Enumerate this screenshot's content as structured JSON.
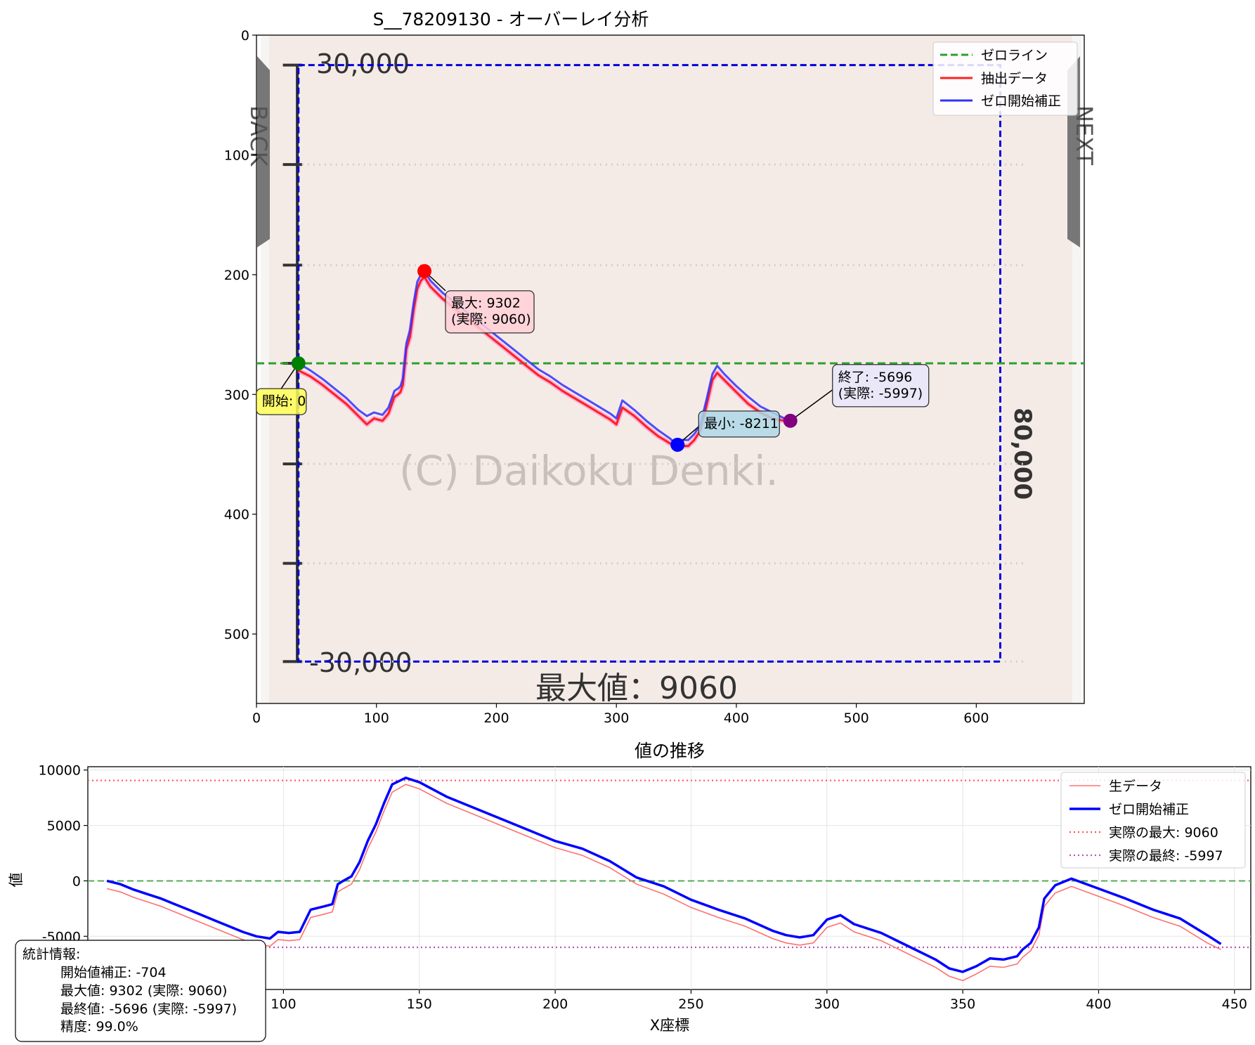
{
  "colors": {
    "zero_line": "#2ca02c",
    "raw": "#ff2020",
    "corrected": "#0000ff",
    "actual_max": "#ff5555",
    "actual_final": "#bb55bb",
    "bg_image": "#f4ebe7",
    "bbox": "#0000dd"
  },
  "chart_data": [
    {
      "type": "line",
      "title": "S__78209130 - オーバーレイ分析",
      "xlim": [
        0,
        690
      ],
      "ylim": [
        558,
        0
      ],
      "x_ticks": [
        0,
        100,
        200,
        300,
        400,
        500,
        600
      ],
      "y_ticks": [
        0,
        100,
        200,
        300,
        400,
        500
      ],
      "background_image_text": {
        "top_scale": "30,000",
        "bottom_scale": "-30,000",
        "right_scale": "80,000",
        "watermark": "(C) Daikoku Denki.",
        "max_caption": "最大値：9060",
        "left_tab": "BACK",
        "right_tab": "NEXT"
      },
      "bbox_data": {
        "x0": 35,
        "y0": 25,
        "x1": 620,
        "y1": 523
      },
      "zero_line_y": 274,
      "legend": {
        "placement": "upper right",
        "entries": [
          "ゼロライン",
          "抽出データ",
          "ゼロ開始補正"
        ]
      },
      "series": [
        {
          "name": "抽出データ",
          "x": [
            35,
            45,
            55,
            65,
            75,
            85,
            92,
            98,
            105,
            110,
            115,
            118,
            120,
            122,
            125,
            128,
            131,
            134,
            137,
            140,
            145,
            155,
            165,
            175,
            185,
            195,
            205,
            215,
            225,
            235,
            245,
            255,
            265,
            275,
            285,
            295,
            300,
            305,
            315,
            325,
            335,
            345,
            350,
            355,
            360,
            365,
            370,
            375,
            380,
            384,
            390,
            400,
            410,
            420,
            430,
            440,
            445
          ],
          "y": [
            280,
            285,
            292,
            300,
            308,
            318,
            325,
            320,
            322,
            316,
            302,
            300,
            298,
            292,
            262,
            252,
            230,
            212,
            205,
            202,
            210,
            220,
            228,
            236,
            244,
            252,
            260,
            268,
            276,
            284,
            290,
            297,
            303,
            309,
            315,
            321,
            325,
            311,
            318,
            327,
            335,
            341,
            346,
            343,
            343,
            338,
            330,
            310,
            288,
            282,
            288,
            298,
            308,
            315,
            320,
            322,
            322
          ]
        },
        {
          "name": "ゼロ開始補正",
          "x": [
            35,
            45,
            55,
            65,
            75,
            85,
            92,
            98,
            105,
            110,
            115,
            118,
            120,
            122,
            125,
            128,
            131,
            134,
            137,
            140,
            145,
            155,
            165,
            175,
            185,
            195,
            205,
            215,
            225,
            235,
            245,
            255,
            265,
            275,
            285,
            295,
            300,
            305,
            315,
            325,
            335,
            345,
            350,
            355,
            360,
            365,
            370,
            375,
            380,
            384,
            390,
            400,
            410,
            420,
            430,
            440,
            445
          ],
          "y": [
            274,
            280,
            287,
            295,
            303,
            313,
            318,
            315,
            317,
            311,
            297,
            295,
            293,
            287,
            257,
            246,
            224,
            206,
            200,
            197,
            205,
            215,
            223,
            231,
            239,
            247,
            255,
            263,
            271,
            279,
            285,
            292,
            298,
            304,
            310,
            316,
            320,
            305,
            313,
            322,
            330,
            337,
            342,
            338,
            338,
            333,
            325,
            305,
            283,
            276,
            283,
            293,
            302,
            310,
            315,
            320,
            321
          ]
        }
      ],
      "annotations": [
        {
          "text": "開始: 0",
          "x": 35,
          "y": 274,
          "color": "#008000"
        },
        {
          "text": "最大: 9302",
          "text2": "(実際: 9060)",
          "x": 140,
          "y": 197,
          "color": "#ff0000"
        },
        {
          "text": "最小: -8211",
          "x": 351,
          "y": 342,
          "color": "#0000ff"
        },
        {
          "text": "終了: -5696",
          "text2": "(実際: -5997)",
          "x": 445,
          "y": 322,
          "color": "#800080"
        }
      ]
    },
    {
      "type": "line",
      "title": "値の推移",
      "xlabel": "X座標",
      "ylabel": "値",
      "xlim": [
        28,
        456
      ],
      "ylim": [
        -9800,
        10300
      ],
      "x_ticks": [
        100,
        150,
        200,
        250,
        300,
        350,
        400,
        450
      ],
      "y_ticks": [
        10000,
        5000,
        0,
        -5000
      ],
      "legend": {
        "placement": "upper right",
        "entries": [
          "生データ",
          "ゼロ開始補正",
          "実際の最大: 9060",
          "実際の最終: -5997"
        ]
      },
      "hlines": [
        {
          "name": "実際の最大: 9060",
          "y": 9060
        },
        {
          "name": "実際の最終: -5997",
          "y": -5997
        },
        {
          "name": "zero",
          "y": 0
        }
      ],
      "series": [
        {
          "name": "生データ",
          "x": [
            35,
            40,
            45,
            50,
            55,
            60,
            65,
            70,
            75,
            80,
            85,
            90,
            95,
            98,
            102,
            106,
            110,
            115,
            118,
            120,
            122,
            125,
            128,
            131,
            134,
            137,
            140,
            145,
            150,
            160,
            170,
            180,
            190,
            200,
            210,
            220,
            230,
            240,
            250,
            260,
            270,
            280,
            285,
            290,
            295,
            300,
            305,
            310,
            320,
            330,
            340,
            345,
            350,
            355,
            360,
            365,
            370,
            372,
            375,
            378,
            380,
            384,
            390,
            400,
            410,
            420,
            430,
            440,
            445
          ],
          "x_note": "",
          "y": [
            -700,
            -1000,
            -1500,
            -1900,
            -2300,
            -2800,
            -3300,
            -3800,
            -4300,
            -4800,
            -5300,
            -5700,
            -5900,
            -5300,
            -5400,
            -5300,
            -3300,
            -3000,
            -2800,
            -1000,
            -700,
            -300,
            1000,
            2900,
            4400,
            6300,
            8000,
            8700,
            8300,
            7000,
            6000,
            5000,
            4000,
            3000,
            2300,
            1200,
            -300,
            -1200,
            -2400,
            -3300,
            -4100,
            -5200,
            -5600,
            -5800,
            -5600,
            -4200,
            -3800,
            -4600,
            -5400,
            -6600,
            -7800,
            -8600,
            -9000,
            -8400,
            -7700,
            -7800,
            -7500,
            -6900,
            -6300,
            -4900,
            -2300,
            -1100,
            -500,
            -1400,
            -2300,
            -3300,
            -4100,
            -5600,
            -6200
          ]
        },
        {
          "name": "ゼロ開始補正",
          "x": [
            35,
            40,
            45,
            50,
            55,
            60,
            65,
            70,
            75,
            80,
            85,
            90,
            95,
            98,
            102,
            106,
            110,
            115,
            118,
            120,
            122,
            125,
            128,
            131,
            134,
            137,
            140,
            145,
            150,
            160,
            170,
            180,
            190,
            200,
            210,
            220,
            230,
            240,
            250,
            260,
            270,
            280,
            285,
            290,
            295,
            300,
            305,
            310,
            320,
            330,
            340,
            345,
            350,
            355,
            360,
            365,
            370,
            372,
            375,
            378,
            380,
            384,
            390,
            400,
            410,
            420,
            430,
            440,
            445
          ],
          "y": [
            0,
            -300,
            -800,
            -1200,
            -1600,
            -2100,
            -2600,
            -3100,
            -3600,
            -4100,
            -4600,
            -5000,
            -5200,
            -4600,
            -4700,
            -4600,
            -2600,
            -2300,
            -2100,
            -300,
            0,
            400,
            1700,
            3600,
            5100,
            7000,
            8700,
            9300,
            8900,
            7600,
            6600,
            5600,
            4600,
            3600,
            2900,
            1800,
            300,
            -500,
            -1700,
            -2600,
            -3400,
            -4500,
            -4900,
            -5100,
            -4900,
            -3500,
            -3100,
            -3900,
            -4700,
            -5900,
            -7100,
            -7900,
            -8211,
            -7700,
            -7000,
            -7100,
            -6800,
            -6200,
            -5600,
            -4200,
            -1600,
            -400,
            200,
            -700,
            -1600,
            -2600,
            -3400,
            -4900,
            -5696
          ]
        }
      ],
      "stats_box": {
        "title": "統計情報:",
        "lines": [
          "開始値補正: -704",
          "最大値: 9302 (実際: 9060)",
          "最終値: -5696 (実際: -5997)",
          "精度: 99.0%"
        ]
      }
    }
  ]
}
